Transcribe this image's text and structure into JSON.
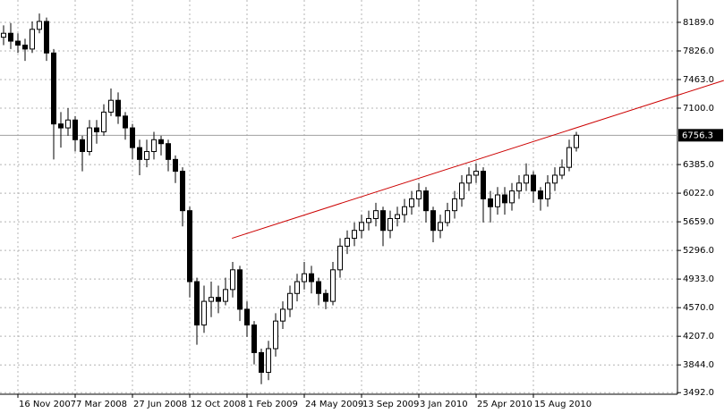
{
  "chart_data": {
    "type": "candlestick",
    "categories": [
      null,
      null,
      "16 Nov 2007",
      null,
      null,
      null,
      null,
      null,
      null,
      null,
      "7 Mar 2008",
      null,
      null,
      null,
      null,
      null,
      null,
      null,
      "27 Jun 2008",
      null,
      null,
      null,
      null,
      null,
      null,
      null,
      "12 Oct 2008",
      null,
      null,
      null,
      null,
      null,
      null,
      null,
      "1 Feb 2009",
      null,
      null,
      null,
      null,
      null,
      null,
      null,
      "24 May 2009",
      null,
      null,
      null,
      null,
      null,
      null,
      null,
      "13 Sep 2009",
      null,
      null,
      null,
      null,
      null,
      null,
      null,
      "3 Jan 2010",
      null,
      null,
      null,
      null,
      null,
      null,
      null,
      "25 Apr 2010",
      null,
      null,
      null,
      null,
      null,
      null,
      null,
      "15 Aug 2010",
      null,
      null,
      null,
      null,
      null,
      null
    ],
    "open": [
      8000,
      8050,
      7950,
      7900,
      7850,
      8100,
      8200,
      7800,
      6900,
      6850,
      6950,
      6700,
      6550,
      6850,
      6800,
      7050,
      7200,
      7000,
      6850,
      6600,
      6450,
      6550,
      6700,
      6650,
      6450,
      6300,
      5800,
      4900,
      4350,
      4650,
      4700,
      4650,
      4800,
      5050,
      4550,
      4350,
      4000,
      3750,
      4050,
      4400,
      4550,
      4750,
      4900,
      5000,
      4900,
      4750,
      4650,
      5050,
      5350,
      5450,
      5550,
      5650,
      5700,
      5800,
      5550,
      5700,
      5750,
      5850,
      5950,
      6050,
      5800,
      5550,
      5650,
      5800,
      5950,
      6150,
      6250,
      6300,
      5950,
      5850,
      6000,
      5900,
      6050,
      6150,
      6250,
      6050,
      5950,
      6150,
      6250,
      6350,
      6600
    ],
    "high": [
      8150,
      8180,
      8050,
      7980,
      8200,
      8300,
      8250,
      7850,
      7050,
      7100,
      7000,
      6750,
      6950,
      6950,
      7150,
      7350,
      7300,
      7050,
      6900,
      6700,
      6700,
      6800,
      6750,
      6700,
      6500,
      6350,
      5850,
      4950,
      4850,
      4900,
      4850,
      4950,
      5150,
      5100,
      4650,
      4400,
      4050,
      4150,
      4500,
      4650,
      4850,
      5000,
      5150,
      5100,
      4950,
      4800,
      5150,
      5450,
      5550,
      5650,
      5750,
      5800,
      5900,
      5850,
      5800,
      5850,
      5950,
      6050,
      6150,
      6100,
      5850,
      5750,
      5900,
      6050,
      6250,
      6350,
      6400,
      6350,
      6050,
      6100,
      6100,
      6150,
      6250,
      6400,
      6300,
      6100,
      6250,
      6350,
      6450,
      6700,
      6800
    ],
    "low": [
      7900,
      7850,
      7800,
      7700,
      7800,
      8050,
      7700,
      6450,
      6600,
      6750,
      6550,
      6300,
      6500,
      6650,
      6750,
      7000,
      6900,
      6700,
      6450,
      6250,
      6350,
      6450,
      6500,
      6300,
      6150,
      5600,
      4700,
      4100,
      4250,
      4450,
      4500,
      4600,
      4700,
      4400,
      4200,
      3850,
      3600,
      3650,
      3950,
      4300,
      4450,
      4650,
      4800,
      4750,
      4600,
      4550,
      4600,
      4950,
      5250,
      5350,
      5450,
      5550,
      5600,
      5350,
      5450,
      5600,
      5650,
      5750,
      5850,
      5650,
      5400,
      5450,
      5600,
      5700,
      5850,
      6050,
      6150,
      5650,
      5650,
      5750,
      5750,
      5800,
      5950,
      6050,
      5900,
      5800,
      5850,
      6050,
      6200,
      6300,
      6550
    ],
    "close": [
      8050,
      7950,
      7900,
      7850,
      8100,
      8200,
      7800,
      6900,
      6850,
      6950,
      6700,
      6550,
      6850,
      6800,
      7050,
      7200,
      7000,
      6850,
      6600,
      6450,
      6550,
      6700,
      6650,
      6450,
      6300,
      5800,
      4900,
      4350,
      4650,
      4700,
      4650,
      4800,
      5050,
      4550,
      4350,
      4000,
      3750,
      4050,
      4400,
      4550,
      4750,
      4900,
      5000,
      4900,
      4750,
      4650,
      5050,
      5350,
      5450,
      5550,
      5650,
      5700,
      5800,
      5550,
      5700,
      5750,
      5850,
      5950,
      6050,
      5800,
      5550,
      5650,
      5800,
      5950,
      6150,
      6250,
      6300,
      5950,
      5850,
      6000,
      5900,
      6050,
      6150,
      6250,
      6050,
      5950,
      6150,
      6250,
      6350,
      6600,
      6756.3
    ],
    "color": "#000000",
    "ylim": [
      3472,
      8472
    ],
    "yticks": [
      {
        "value": 8189,
        "label": "8189.0"
      },
      {
        "value": 7826,
        "label": "7826.0"
      },
      {
        "value": 7463,
        "label": "7463.0"
      },
      {
        "value": 7100,
        "label": "7100.0"
      },
      {
        "value": 6385,
        "label": "6385.0"
      },
      {
        "value": 6022,
        "label": "6022.0"
      },
      {
        "value": 5659,
        "label": "5659.0"
      },
      {
        "value": 5296,
        "label": "5296.0"
      },
      {
        "value": 4933,
        "label": "4933.0"
      },
      {
        "value": 4570,
        "label": "4570.0"
      },
      {
        "value": 4207,
        "label": "4207.0"
      },
      {
        "value": 3844,
        "label": "3844.0"
      },
      {
        "value": 3492,
        "label": "3492.0"
      }
    ],
    "grid": true,
    "last_price": 6756.3,
    "trendline": {
      "x": [
        31.9,
        100.6
      ],
      "y": [
        5450,
        7452
      ],
      "color": "#cc0000"
    }
  }
}
